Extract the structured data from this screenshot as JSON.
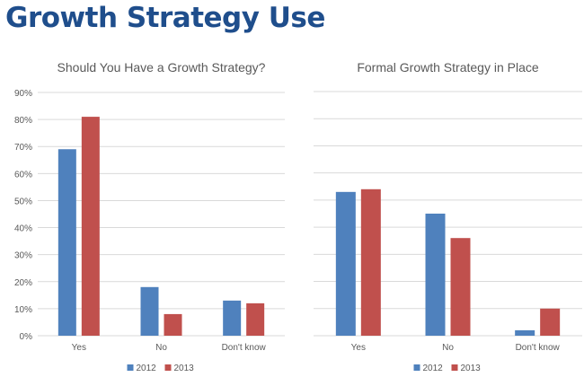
{
  "page_title": "Growth Strategy Use",
  "chart_data": [
    {
      "type": "bar",
      "title": "Should You Have a Growth Strategy?",
      "categories": [
        "Yes",
        "No",
        "Don't know"
      ],
      "series": [
        {
          "name": "2012",
          "color": "#4f81bd",
          "values": [
            69,
            18,
            13
          ]
        },
        {
          "name": "2013",
          "color": "#c0504d",
          "values": [
            81,
            8,
            12
          ]
        }
      ],
      "ylim": [
        0,
        90
      ],
      "yticks": [
        "0%",
        "10%",
        "20%",
        "30%",
        "40%",
        "50%",
        "60%",
        "70%",
        "80%",
        "90%"
      ],
      "grid": true,
      "legend": "bottom"
    },
    {
      "type": "bar",
      "title": "Formal Growth Strategy in Place",
      "categories": [
        "Yes",
        "No",
        "Don't know"
      ],
      "series": [
        {
          "name": "2012",
          "color": "#4f81bd",
          "values": [
            53,
            45,
            2
          ]
        },
        {
          "name": "2013",
          "color": "#c0504d",
          "values": [
            54,
            36,
            10
          ]
        }
      ],
      "ylim": [
        0,
        90
      ],
      "grid": true,
      "legend": "bottom"
    }
  ]
}
